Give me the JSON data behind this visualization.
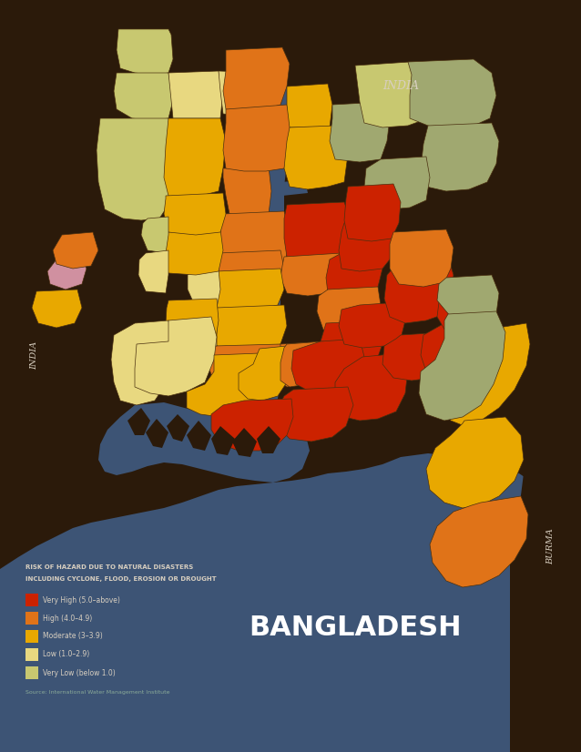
{
  "subtitle_line1": "RISK OF HAZARD DUE TO NATURAL DISASTERS",
  "subtitle_line2": "INCLUDING CYCLONE, FLOOD, EROSION OR DROUGHT",
  "source": "Source: International Water Management Institute",
  "country_label": "BANGLADESH",
  "india_label_ne": "INDIA",
  "india_label_w": "INDIA",
  "burma_label": "BURMA",
  "legend_items": [
    {
      "label": "Very High (5.0–above)",
      "color": "#cc2200"
    },
    {
      "label": "High (4.0–4.9)",
      "color": "#e07318"
    },
    {
      "label": "Moderate (3–3.9)",
      "color": "#e8a800"
    },
    {
      "label": "Low (1.0–2.9)",
      "color": "#e8d880"
    },
    {
      "label": "Very Low (below 1.0)",
      "color": "#c8c870"
    }
  ],
  "bg_color": "#2b1a0a",
  "water_color": "#3d5475",
  "neighbor_color": "#2b1a0a",
  "text_color": "#d8cfc0",
  "source_color": "#8aaa98",
  "border_color": "#4a3010"
}
